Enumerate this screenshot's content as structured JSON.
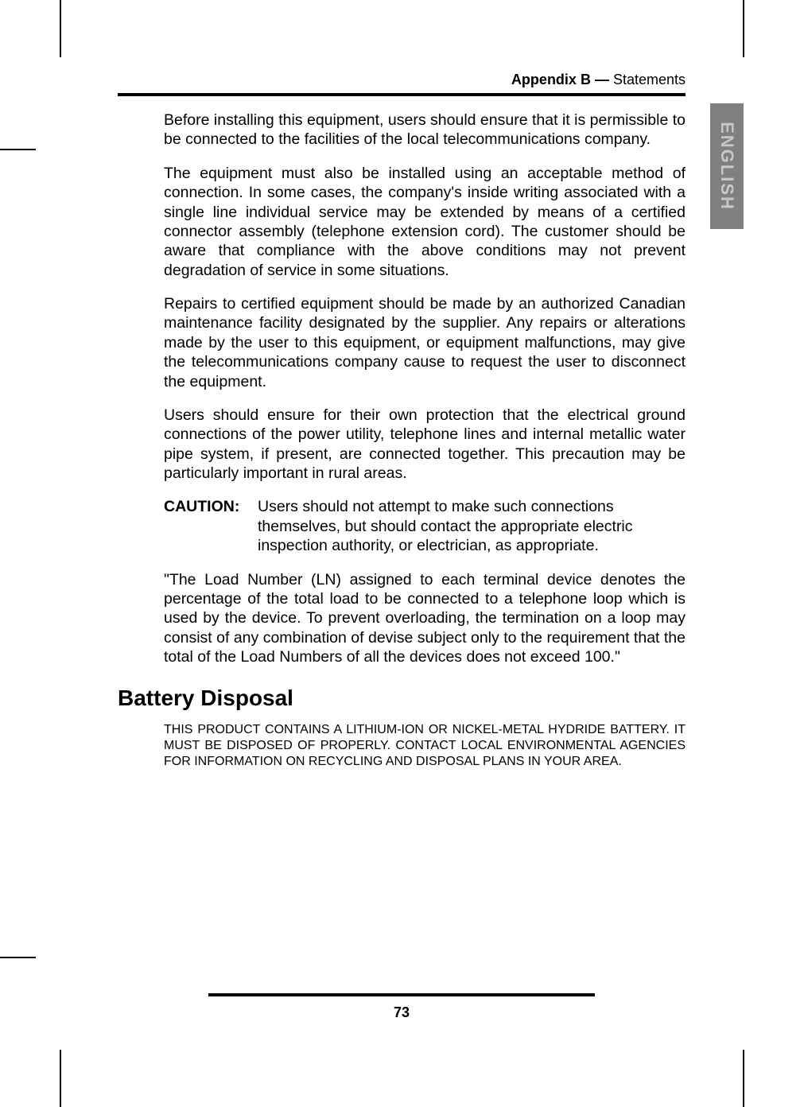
{
  "header": {
    "bold": "Appendix B —",
    "regular": " Statements"
  },
  "side_tab": "ENGLISH",
  "paragraphs": {
    "p1": "Before installing this equipment, users should ensure that it is permissible to be connected to the facilities of the local telecommunications company.",
    "p2": "The equipment must also be installed using an acceptable method of connection. In some cases, the company's inside writing associated with a single line individual service may be extended by means of a certified connector assembly (telephone extension cord). The customer should be aware that compliance with the above conditions may not prevent degradation of service in some situations.",
    "p3": "Repairs to certified equipment should be made by an authorized Canadian maintenance facility designated by the supplier. Any repairs or alterations made by the user to this equipment, or equipment malfunctions, may give the telecommunications company cause to request the user to disconnect the equipment.",
    "p4": "Users should ensure for their own protection that the electrical ground connections of the power utility, telephone lines and internal metallic water pipe system, if present, are connected together. This precaution may be particularly important in rural areas.",
    "caution_label": "CAUTION:",
    "caution_text": "Users should not attempt to make such connections themselves, but should contact the appropriate electric inspection authority, or electrician, as appropriate.",
    "p5": "\"The Load Number (LN) assigned to each terminal device denotes the percentage of the total load to be connected to a telephone loop which is used by the device. To prevent overloading, the termination on a loop may consist of any combination of devise subject only to the requirement that the total of the Load Numbers of all the devices does not exceed 100.\""
  },
  "sections": {
    "battery_disposal": "Battery Disposal",
    "battery_text": "THIS PRODUCT CONTAINS A LITHIUM-ION OR NICKEL-METAL HYDRIDE BATTERY. IT MUST BE DISPOSED OF PROPERLY. CONTACT LOCAL ENVIRONMENTAL AGENCIES FOR INFORMATION ON RECYCLING AND DISPOSAL PLANS IN YOUR AREA."
  },
  "page_number": "73",
  "colors": {
    "text": "#000000",
    "background": "#ffffff",
    "tab_bg": "#808080",
    "tab_text": "#c3c8cc"
  },
  "fonts": {
    "body_size": 19.5,
    "heading_size": 28,
    "small_size": 16,
    "header_size": 18
  }
}
